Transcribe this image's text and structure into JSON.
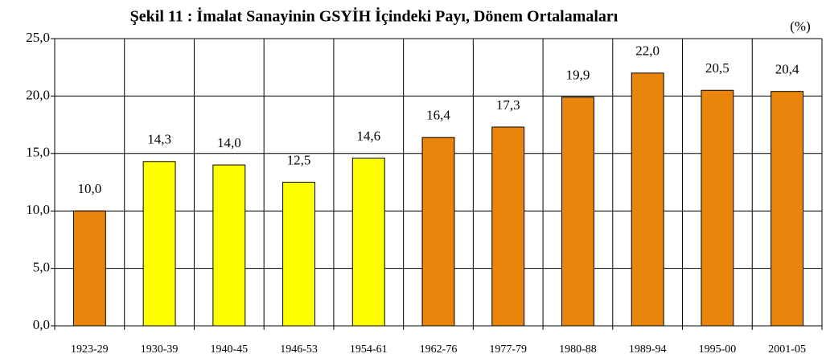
{
  "chart_data": {
    "type": "bar",
    "title": "Şekil 11 : İmalat Sanayinin GSYİH İçindeki Payı, Dönem Ortalamaları",
    "unit_label": "(%)",
    "categories": [
      "1923-29",
      "1930-39",
      "1940-45",
      "1946-53",
      "1954-61",
      "1962-76",
      "1977-79",
      "1980-88",
      "1989-94",
      "1995-00",
      "2001-05"
    ],
    "values": [
      10.0,
      14.3,
      14.0,
      12.5,
      14.6,
      16.4,
      17.3,
      19.9,
      22.0,
      20.5,
      20.4
    ],
    "value_labels": [
      "10,0",
      "14,3",
      "14,0",
      "12,5",
      "14,6",
      "16,4",
      "17,3",
      "19,9",
      "22,0",
      "20,5",
      "20,4"
    ],
    "colors": [
      "#e8850a",
      "#ffff00",
      "#ffff00",
      "#ffff00",
      "#ffff00",
      "#e8850a",
      "#e8850a",
      "#e8850a",
      "#e8850a",
      "#e8850a",
      "#e8850a"
    ],
    "ylim": [
      0,
      25
    ],
    "yticks": [
      {
        "value": 0,
        "label": "0,0"
      },
      {
        "value": 5,
        "label": "5,0"
      },
      {
        "value": 10,
        "label": "10,0"
      },
      {
        "value": 15,
        "label": "15,0"
      },
      {
        "value": 20,
        "label": "20,0"
      },
      {
        "value": 25,
        "label": "25,0"
      }
    ],
    "grid": true
  }
}
